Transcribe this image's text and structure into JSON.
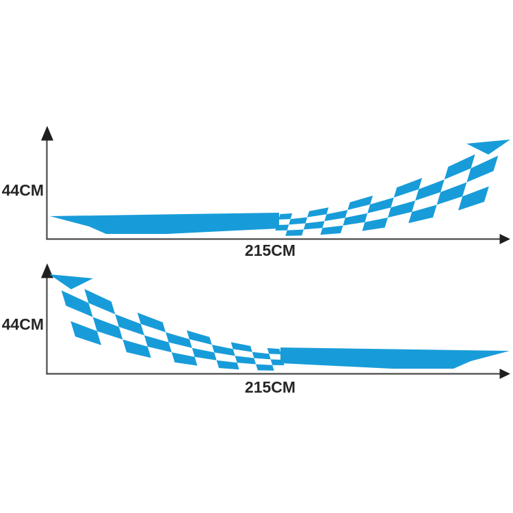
{
  "page": {
    "background": "#ffffff"
  },
  "colors": {
    "decal": "#189CD9",
    "axis_line": "#4a4a4a",
    "arrow_fill": "#1f1f1f",
    "label_text": "#262626"
  },
  "figure_top": {
    "height_label": "44CM",
    "width_label": "215CM"
  },
  "figure_bottom": {
    "height_label": "44CM",
    "width_label": "215CM"
  }
}
